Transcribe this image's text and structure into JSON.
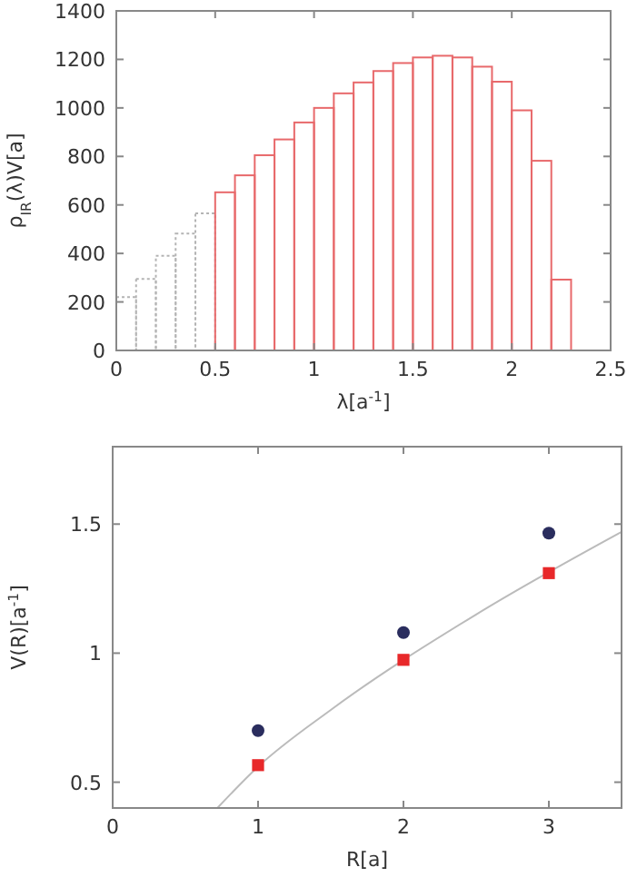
{
  "chart_data": [
    {
      "type": "histogram",
      "xlabel": "λ[a$^{-1}$]",
      "ylabel": "ρ$_{IR}$(λ)V[a]",
      "bins": [
        0,
        0.1,
        0.2,
        0.3,
        0.4,
        0.5,
        0.6,
        0.7,
        0.8,
        0.9,
        1,
        1.1,
        1.2,
        1.3,
        1.4,
        1.5,
        1.6,
        1.7,
        1.8,
        1.9,
        2,
        2.1,
        2.2,
        2.3
      ],
      "xlim": [
        0,
        2.5
      ],
      "xticks": [
        0,
        0.5,
        1,
        1.5,
        2,
        2.5
      ],
      "ylim": [
        0,
        1400
      ],
      "yticks": [
        0,
        200,
        400,
        600,
        800,
        1000,
        1200,
        1400
      ],
      "grid": false,
      "series": [
        {
          "color": "#b4b4b4",
          "line_style": "dotted",
          "values": [
            220,
            295,
            390,
            482,
            565,
            null,
            null,
            null,
            null,
            null,
            null,
            null,
            null,
            null,
            null,
            null,
            null,
            null,
            null,
            null,
            null,
            null,
            null
          ]
        },
        {
          "color": "#e8696b",
          "line_style": "solid",
          "values": [
            null,
            null,
            null,
            null,
            null,
            652,
            722,
            805,
            870,
            940,
            1000,
            1060,
            1105,
            1152,
            1185,
            1208,
            1215,
            1208,
            1170,
            1108,
            990,
            782,
            292
          ]
        }
      ]
    },
    {
      "type": "scatter",
      "xlabel": "R[a]",
      "ylabel": "V(R)[a$^{-1}$]",
      "xlim": [
        0,
        3.5
      ],
      "xticks": [
        0,
        1,
        2,
        3
      ],
      "ylim": [
        0.4,
        1.8
      ],
      "yticks": [
        0.5,
        1,
        1.5
      ],
      "grid": false,
      "series": [
        {
          "type": "line",
          "color": "#bbbbbb",
          "marker": "none",
          "x": [
            0.72,
            1,
            1.5,
            2.5,
            3.5
          ],
          "values": [
            0.4,
            0.56,
            0.78,
            1.15,
            1.47
          ]
        },
        {
          "type": "scatter",
          "color": "#2a2d5e",
          "marker": "circle",
          "x": [
            1,
            2,
            3
          ],
          "values": [
            0.7,
            1.08,
            1.465
          ]
        },
        {
          "type": "scatter",
          "color": "#e8282a",
          "marker": "square",
          "x": [
            1,
            2,
            3
          ],
          "values": [
            0.566,
            0.974,
            1.31
          ]
        }
      ]
    }
  ]
}
